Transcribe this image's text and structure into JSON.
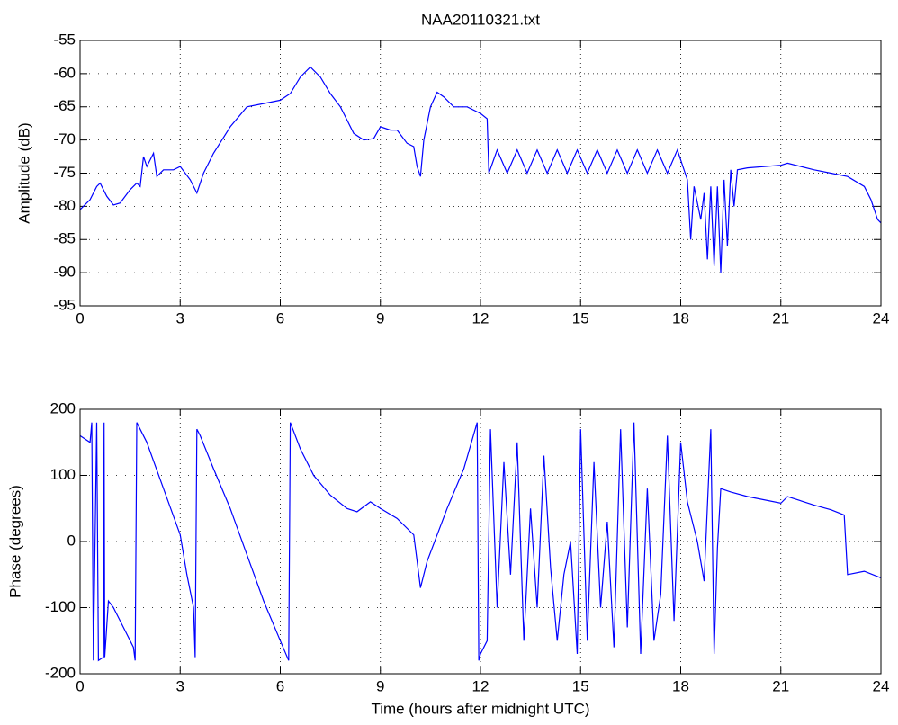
{
  "chart_data": [
    {
      "type": "line",
      "title": "NAA20110321.txt",
      "y_label": "Amplitude (dB)",
      "x": [
        0,
        0.3,
        0.5,
        0.6,
        0.8,
        1.0,
        1.2,
        1.5,
        1.7,
        1.8,
        1.9,
        2.0,
        2.2,
        2.3,
        2.5,
        2.8,
        3.0,
        3.3,
        3.5,
        3.7,
        4.0,
        4.5,
        5.0,
        5.5,
        6.0,
        6.3,
        6.6,
        6.9,
        7.2,
        7.5,
        7.8,
        8.0,
        8.2,
        8.5,
        8.8,
        9.0,
        9.3,
        9.5,
        9.8,
        10.0,
        10.1,
        10.2,
        10.3,
        10.5,
        10.7,
        10.9,
        11.2,
        11.6,
        12.0,
        12.2,
        12.25,
        12.5,
        12.8,
        13.1,
        13.4,
        13.7,
        14.0,
        14.3,
        14.6,
        14.9,
        15.2,
        15.5,
        15.8,
        16.1,
        16.4,
        16.7,
        17.0,
        17.3,
        17.6,
        17.9,
        18.2,
        18.3,
        18.4,
        18.6,
        18.7,
        18.8,
        18.9,
        19.0,
        19.1,
        19.2,
        19.3,
        19.4,
        19.5,
        19.6,
        19.7,
        20,
        21,
        21.2,
        22,
        22.5,
        23,
        23.5,
        23.7,
        23.9,
        24
      ],
      "series": [
        {
          "name": "Amplitude",
          "color": "#0000ff",
          "values": [
            -80.5,
            -79,
            -77,
            -76.5,
            -78.5,
            -79.8,
            -79.5,
            -77.5,
            -76.5,
            -77,
            -72.5,
            -74,
            -72,
            -75.5,
            -74.5,
            -74.5,
            -74,
            -76,
            -78,
            -75,
            -72,
            -68,
            -65,
            -64.5,
            -64,
            -63,
            -60.5,
            -59,
            -60.5,
            -63,
            -65,
            -67,
            -69,
            -70,
            -69.8,
            -68,
            -68.5,
            -68.5,
            -70.5,
            -71,
            -74,
            -75.5,
            -70,
            -65,
            -62.8,
            -63.5,
            -65,
            -65,
            -66,
            -66.8,
            -75,
            -71.5,
            -75,
            -71.5,
            -75,
            -71.5,
            -75,
            -71.5,
            -75,
            -71.5,
            -75,
            -71.5,
            -75,
            -71.5,
            -75,
            -71.5,
            -75,
            -71.5,
            -75,
            -71.5,
            -76,
            -85,
            -77,
            -82,
            -78,
            -88,
            -77,
            -89,
            -77,
            -90,
            -76,
            -86,
            -74.5,
            -80,
            -74.5,
            -74.2,
            -73.8,
            -73.5,
            -74.5,
            -75,
            -75.5,
            -77,
            -79,
            -82,
            -82.5
          ]
        }
      ],
      "xlim": [
        0,
        24
      ],
      "xticks": [
        0,
        3,
        6,
        9,
        12,
        15,
        18,
        21,
        24
      ],
      "ylim": [
        -95,
        -55
      ],
      "yticks": [
        -95,
        -90,
        -85,
        -80,
        -75,
        -70,
        -65,
        -60,
        -55
      ],
      "grid": true
    },
    {
      "type": "line",
      "x_label": "Time (hours after midnight UTC)",
      "y_label": "Phase (degrees)",
      "x": [
        0,
        0.3,
        0.35,
        0.4,
        0.5,
        0.55,
        0.7,
        0.72,
        0.74,
        0.85,
        1.0,
        1.3,
        1.6,
        1.65,
        1.7,
        2.0,
        2.5,
        3.0,
        3.2,
        3.4,
        3.45,
        3.5,
        3.6,
        4.0,
        4.5,
        5.0,
        5.5,
        6.0,
        6.25,
        6.3,
        6.6,
        7.0,
        7.5,
        8.0,
        8.3,
        8.7,
        9.0,
        9.5,
        10.0,
        10.2,
        10.4,
        11.0,
        11.5,
        11.9,
        11.95,
        12.0,
        12.2,
        12.3,
        12.5,
        12.7,
        12.9,
        13.1,
        13.3,
        13.5,
        13.7,
        13.9,
        14.1,
        14.3,
        14.5,
        14.7,
        14.9,
        15.0,
        15.2,
        15.4,
        15.6,
        15.8,
        16.0,
        16.2,
        16.4,
        16.6,
        16.8,
        17.0,
        17.2,
        17.4,
        17.6,
        17.8,
        18.0,
        18.2,
        18.5,
        18.7,
        18.9,
        19.0,
        19.1,
        19.2,
        19.5,
        20,
        21,
        21.2,
        22,
        22.5,
        22.9,
        23.0,
        23.5,
        24
      ],
      "series": [
        {
          "name": "Phase",
          "color": "#0000ff",
          "values": [
            160,
            150,
            180,
            -180,
            180,
            -180,
            -175,
            180,
            -175,
            -90,
            -100,
            -130,
            -160,
            -180,
            180,
            150,
            80,
            10,
            -50,
            -100,
            -175,
            170,
            160,
            110,
            50,
            -20,
            -90,
            -150,
            -180,
            180,
            140,
            100,
            70,
            50,
            45,
            60,
            50,
            35,
            10,
            -70,
            -30,
            50,
            110,
            180,
            -180,
            -170,
            -150,
            170,
            -100,
            120,
            -50,
            150,
            -150,
            50,
            -100,
            130,
            -40,
            -150,
            -50,
            0,
            -170,
            170,
            -150,
            120,
            -100,
            30,
            -160,
            170,
            -130,
            180,
            -170,
            80,
            -150,
            -80,
            160,
            -120,
            150,
            60,
            0,
            -60,
            170,
            -170,
            -10,
            80,
            75,
            68,
            58,
            68,
            55,
            48,
            40,
            -50,
            -45,
            -55
          ]
        }
      ],
      "xlim": [
        0,
        24
      ],
      "xticks": [
        0,
        3,
        6,
        9,
        12,
        15,
        18,
        21,
        24
      ],
      "ylim": [
        -200,
        200
      ],
      "yticks": [
        -200,
        -100,
        0,
        100,
        200
      ],
      "grid": true
    }
  ]
}
